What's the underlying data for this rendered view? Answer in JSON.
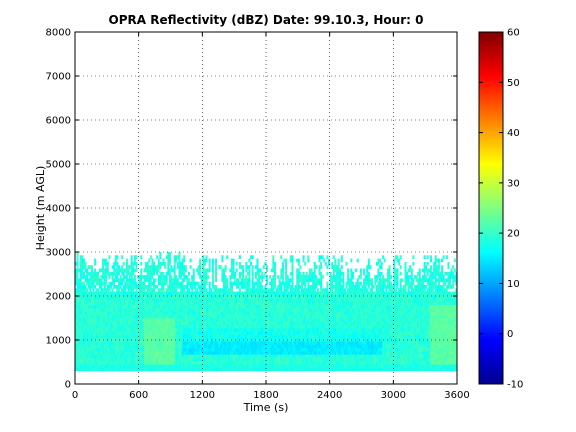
{
  "chart_data": {
    "type": "heatmap",
    "title": "OPRA Reflectivity (dBZ)  Date: 99.10.3, Hour: 0",
    "xlabel": "Time (s)",
    "ylabel": "Height (m AGL)",
    "xlim": [
      0,
      3600
    ],
    "ylim": [
      0,
      8000
    ],
    "x_ticks": [
      "0",
      "600",
      "1200",
      "1800",
      "2400",
      "3000",
      "3600"
    ],
    "y_ticks": [
      "0",
      "1000",
      "2000",
      "3000",
      "4000",
      "5000",
      "6000",
      "7000",
      "8000"
    ],
    "grid": "dotted",
    "colorbar": {
      "range": [
        -10,
        60
      ],
      "ticks": [
        "-10",
        "0",
        "10",
        "20",
        "30",
        "40",
        "50",
        "60"
      ],
      "colormap": "jet"
    },
    "data_extent": {
      "height_min": 300,
      "height_max": 3000,
      "time_min": 0,
      "time_max": 3600
    },
    "value_range": [
      12,
      25
    ],
    "features": [
      {
        "description": "reflectivity field 300-3000 m, mostly 17-22 dBZ"
      },
      {
        "description": "weaker band ~14-16 dBZ near 700-900 m between 1000 s and 2900 s"
      },
      {
        "description": "slightly higher ~23-25 dBZ patches near 500-1500 m around 700-900 s and 3400-3600 s"
      }
    ]
  }
}
